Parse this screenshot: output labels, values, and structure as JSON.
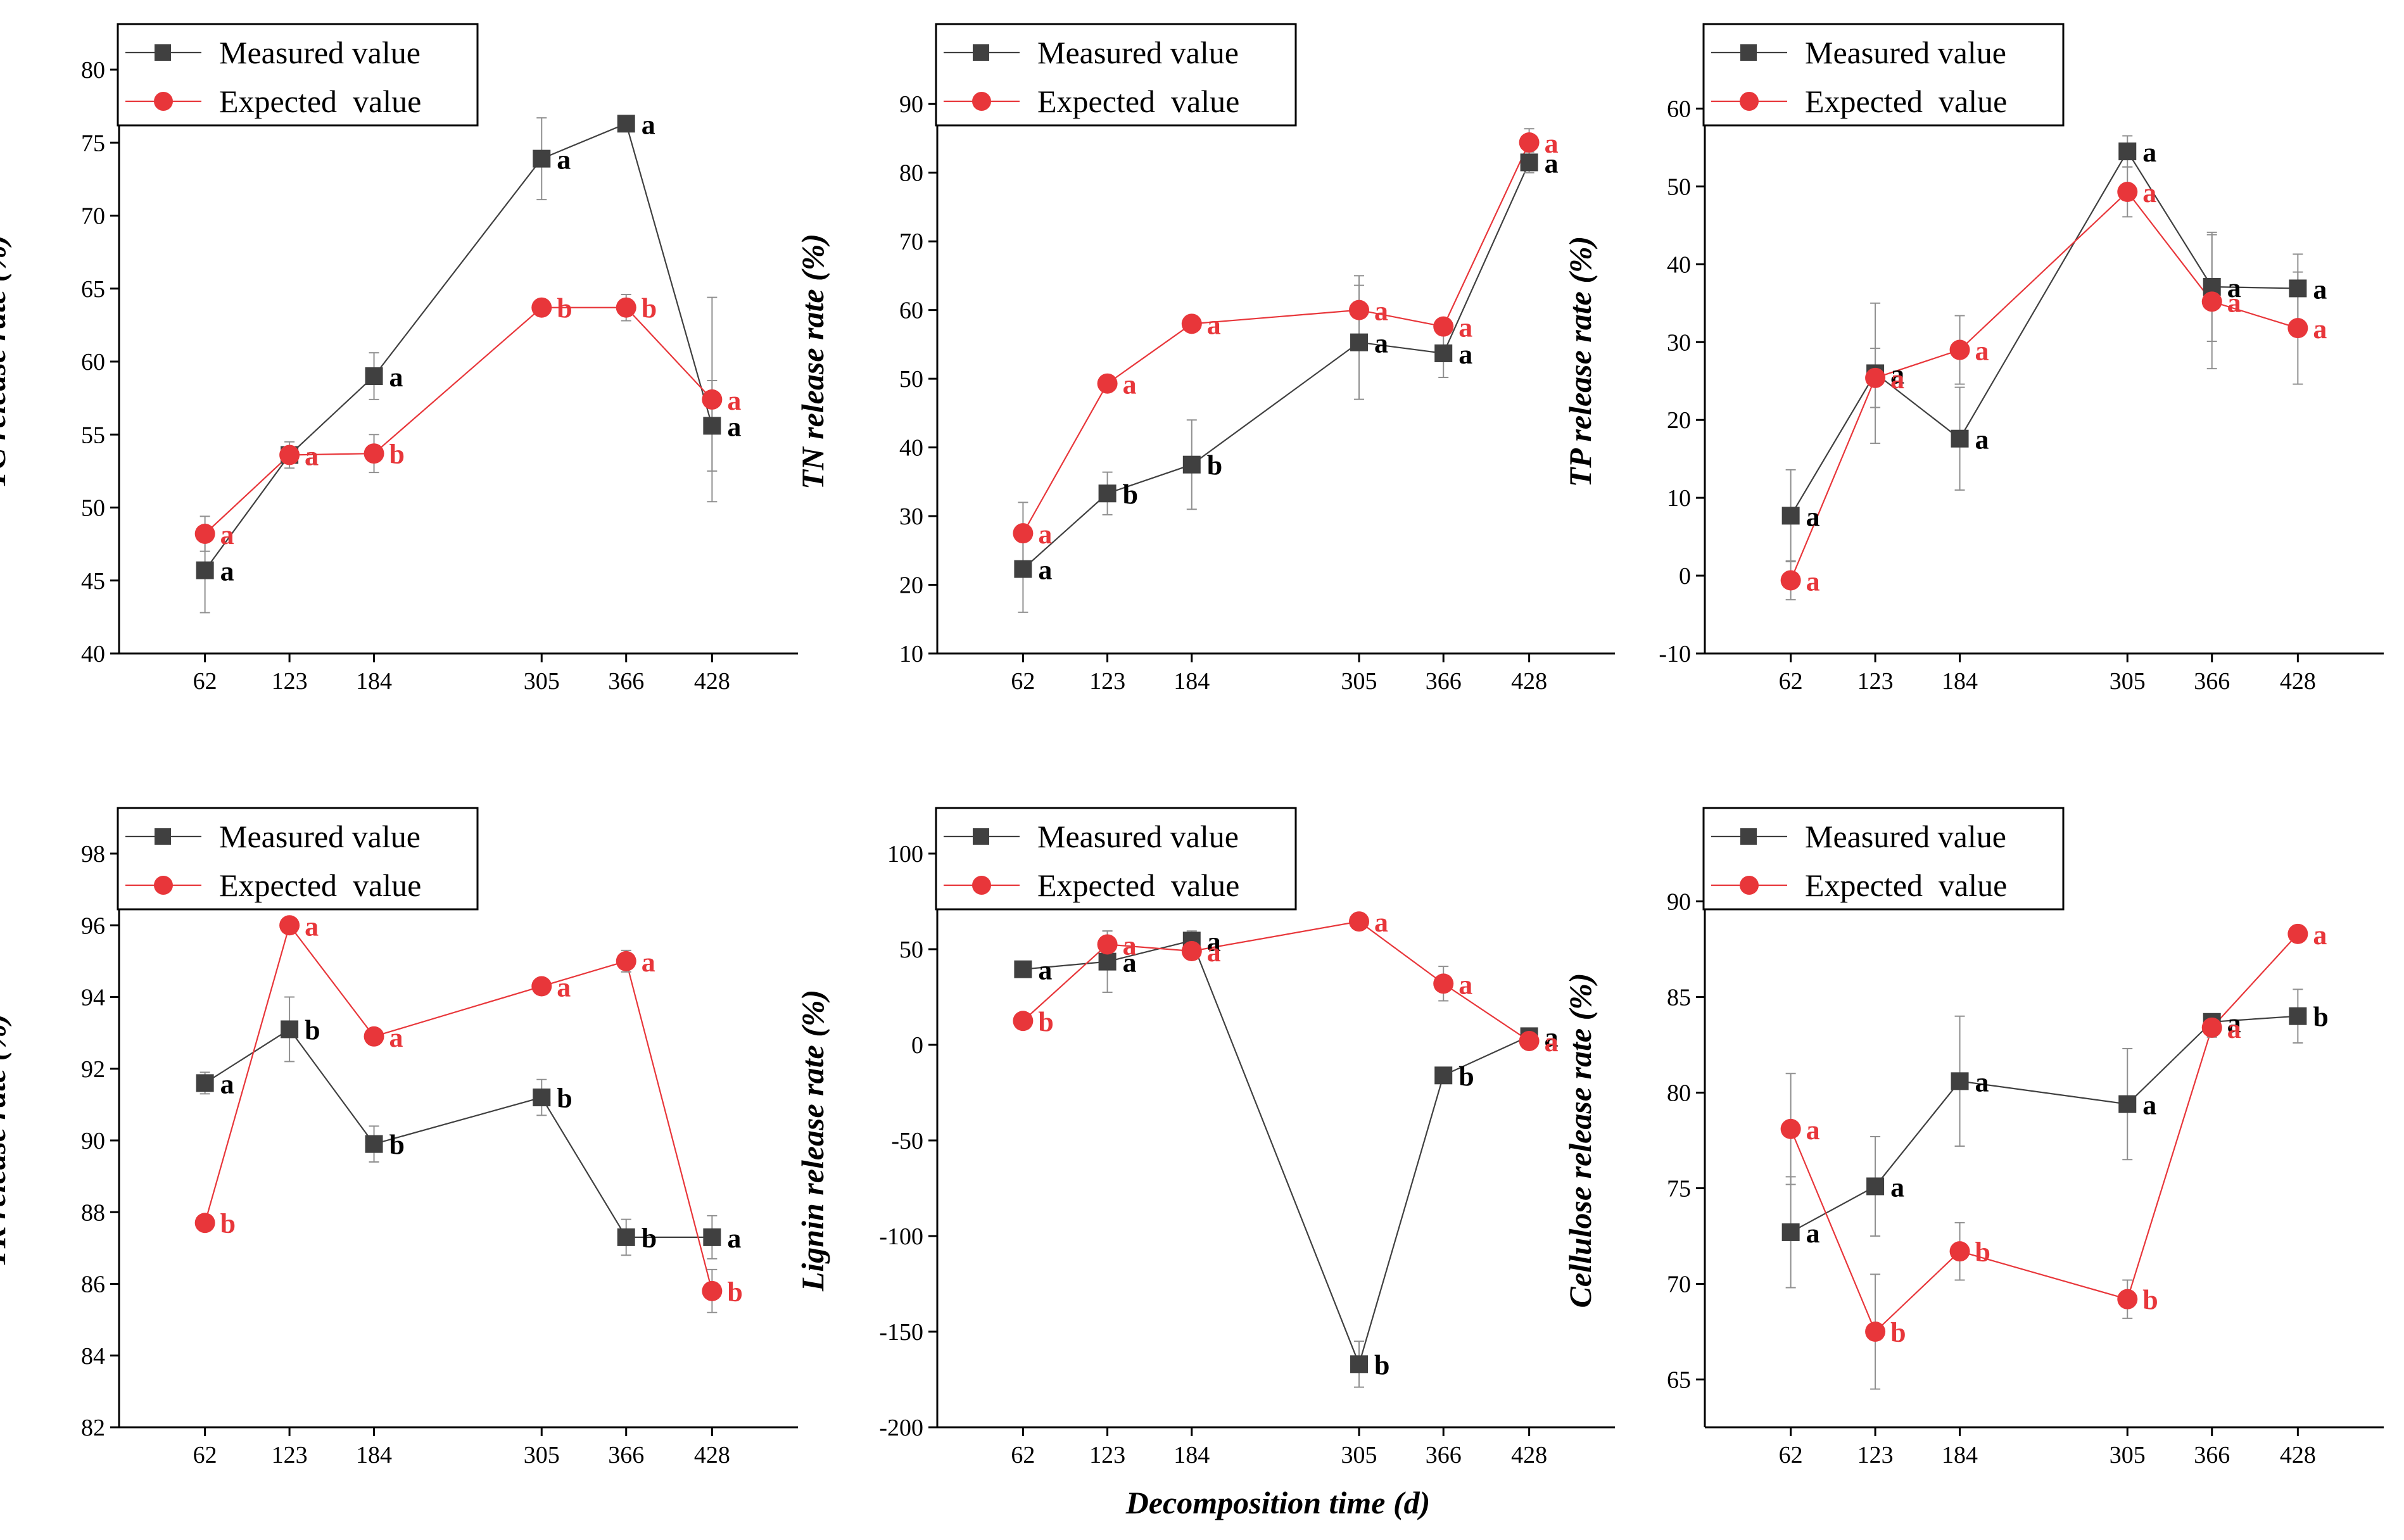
{
  "figure": {
    "xlabel": "Decomposition time (d)",
    "colors": {
      "measured": "#404040",
      "expected": "#e8363a",
      "axis": "#000000",
      "error": "#909090"
    }
  },
  "chart_data": [
    {
      "type": "line",
      "ylabel": "TC release rate (%)",
      "x": [
        62,
        123,
        184,
        305,
        366,
        428
      ],
      "xlim": [
        0,
        490
      ],
      "ylim": [
        40,
        80
      ],
      "yticks": [
        40,
        45,
        50,
        55,
        60,
        65,
        70,
        75,
        80
      ],
      "legend": [
        "Measured value",
        "Expected  value"
      ],
      "series": [
        {
          "name": "Measured value",
          "values": [
            45.7,
            53.6,
            59.0,
            73.9,
            76.3,
            55.6
          ],
          "errors": [
            2.9,
            0.5,
            1.6,
            2.8,
            0,
            3.1
          ],
          "letters": [
            "a",
            "a",
            "a",
            "a",
            "a",
            "a"
          ]
        },
        {
          "name": "Expected  value",
          "values": [
            48.2,
            53.6,
            53.7,
            63.7,
            63.7,
            57.4
          ],
          "errors": [
            1.2,
            0.9,
            1.3,
            0,
            0.9,
            7.0
          ],
          "letters": [
            "a",
            "a",
            "b",
            "b",
            "b",
            "a"
          ]
        }
      ]
    },
    {
      "type": "line",
      "ylabel": "TN release rate (%)",
      "x": [
        62,
        123,
        184,
        305,
        366,
        428
      ],
      "xlim": [
        0,
        490
      ],
      "ylim": [
        10,
        95
      ],
      "yticks": [
        10,
        20,
        30,
        40,
        50,
        60,
        70,
        80,
        90
      ],
      "legend": [
        "Measured value",
        "Expected  value"
      ],
      "series": [
        {
          "name": "Measured value",
          "values": [
            22.3,
            33.3,
            37.5,
            55.3,
            53.7,
            81.5
          ],
          "errors": [
            6.3,
            3.1,
            6.5,
            8.3,
            3.5,
            1.5
          ],
          "letters": [
            "a",
            "b",
            "b",
            "a",
            "a",
            "a"
          ]
        },
        {
          "name": "Expected  value",
          "values": [
            27.5,
            49.3,
            58.0,
            60.0,
            57.6,
            84.4
          ],
          "errors": [
            4.5,
            0.5,
            0.6,
            5.0,
            1.0,
            2.0
          ],
          "letters": [
            "a",
            "a",
            "a",
            "a",
            "a",
            "a"
          ]
        }
      ]
    },
    {
      "type": "line",
      "ylabel": "TP release rate (%)",
      "x": [
        62,
        123,
        184,
        305,
        366,
        428
      ],
      "xlim": [
        0,
        490
      ],
      "ylim": [
        -10,
        65
      ],
      "yticks": [
        -10,
        0,
        10,
        20,
        30,
        40,
        50,
        60
      ],
      "legend": [
        "Measured value",
        "Expected  value"
      ],
      "series": [
        {
          "name": "Measured value",
          "values": [
            7.7,
            26.0,
            17.6,
            54.5,
            37.1,
            36.9
          ],
          "errors": [
            5.9,
            9.0,
            6.6,
            2.0,
            7.0,
            4.4
          ],
          "letters": [
            "a",
            "a",
            "a",
            "a",
            "a",
            "a"
          ]
        },
        {
          "name": "Expected  value",
          "values": [
            -0.6,
            25.4,
            29.0,
            49.3,
            35.2,
            31.8
          ],
          "errors": [
            2.5,
            3.8,
            4.4,
            3.2,
            8.6,
            7.2
          ],
          "letters": [
            "a",
            "a",
            "a",
            "a",
            "a",
            "a"
          ]
        }
      ]
    },
    {
      "type": "line",
      "ylabel": "TK release rate (%)",
      "x": [
        62,
        123,
        184,
        305,
        366,
        428
      ],
      "xlim": [
        0,
        490
      ],
      "ylim": [
        82,
        98
      ],
      "yticks": [
        82,
        84,
        86,
        88,
        90,
        92,
        94,
        96,
        98
      ],
      "legend": [
        "Measured value",
        "Expected  value"
      ],
      "series": [
        {
          "name": "Measured value",
          "values": [
            91.6,
            93.1,
            89.9,
            91.2,
            87.3,
            87.3
          ],
          "errors": [
            0.3,
            0.9,
            0.5,
            0.5,
            0.5,
            0.6
          ],
          "letters": [
            "a",
            "b",
            "b",
            "b",
            "b",
            "a"
          ]
        },
        {
          "name": "Expected  value",
          "values": [
            87.7,
            96.0,
            92.9,
            94.3,
            95.0,
            85.8
          ],
          "errors": [
            0.2,
            0.2,
            0.2,
            0.2,
            0.3,
            0.6
          ],
          "letters": [
            "b",
            "a",
            "a",
            "a",
            "a",
            "b"
          ]
        }
      ]
    },
    {
      "type": "line",
      "ylabel": "Lignin release rate (%)",
      "x": [
        62,
        123,
        184,
        305,
        366,
        428
      ],
      "xlim": [
        0,
        490
      ],
      "ylim": [
        -200,
        100
      ],
      "yticks": [
        -200,
        -150,
        -100,
        -50,
        0,
        50,
        100
      ],
      "legend": [
        "Measured value",
        "Expected  value"
      ],
      "series": [
        {
          "name": "Measured value",
          "values": [
            39.5,
            43.5,
            54.5,
            -167.0,
            -16.0,
            4.5
          ],
          "errors": [
            2.0,
            16.0,
            5.0,
            12.0,
            3.0,
            2.5
          ],
          "letters": [
            "a",
            "a",
            "a",
            "b",
            "b",
            "a"
          ]
        },
        {
          "name": "Expected  value",
          "values": [
            12.5,
            52.5,
            49.0,
            64.5,
            32.0,
            2.0
          ],
          "errors": [
            2.0,
            7.0,
            3.0,
            2.0,
            9.0,
            3.5
          ],
          "letters": [
            "b",
            "a",
            "a",
            "a",
            "a",
            "a"
          ]
        }
      ]
    },
    {
      "type": "line",
      "ylabel": "Cellulose release rate (%)",
      "x": [
        62,
        123,
        184,
        305,
        366,
        428
      ],
      "xlim": [
        0,
        490
      ],
      "ylim": [
        62.5,
        92.5
      ],
      "yticks": [
        65,
        70,
        75,
        80,
        85,
        90
      ],
      "legend": [
        "Measured value",
        "Expected  value"
      ],
      "series": [
        {
          "name": "Measured value",
          "values": [
            72.7,
            75.1,
            80.6,
            79.4,
            83.7,
            84.0
          ],
          "errors": [
            2.9,
            2.6,
            3.4,
            2.9,
            0.4,
            1.4
          ],
          "letters": [
            "a",
            "a",
            "a",
            "a",
            "a",
            "b"
          ]
        },
        {
          "name": "Expected  value",
          "values": [
            78.1,
            67.5,
            71.7,
            69.2,
            83.4,
            88.3
          ],
          "errors": [
            2.9,
            3.0,
            1.5,
            1.0,
            0.5,
            0.4
          ],
          "letters": [
            "a",
            "b",
            "b",
            "b",
            "a",
            "a"
          ]
        }
      ]
    }
  ]
}
